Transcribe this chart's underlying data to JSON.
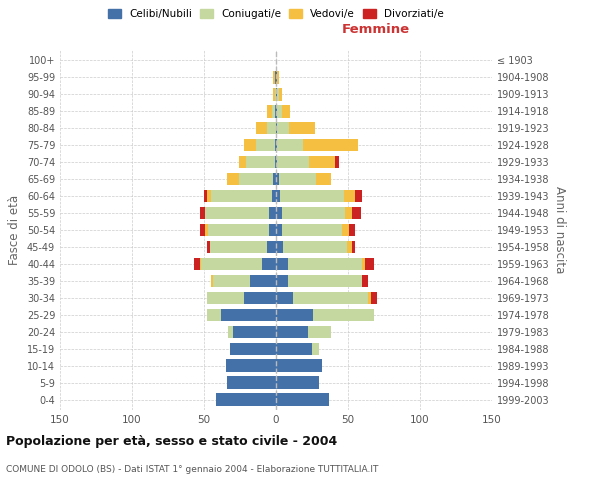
{
  "age_groups": [
    "0-4",
    "5-9",
    "10-14",
    "15-19",
    "20-24",
    "25-29",
    "30-34",
    "35-39",
    "40-44",
    "45-49",
    "50-54",
    "55-59",
    "60-64",
    "65-69",
    "70-74",
    "75-79",
    "80-84",
    "85-89",
    "90-94",
    "95-99",
    "100+"
  ],
  "birth_years": [
    "1999-2003",
    "1994-1998",
    "1989-1993",
    "1984-1988",
    "1979-1983",
    "1974-1978",
    "1969-1973",
    "1964-1968",
    "1959-1963",
    "1954-1958",
    "1949-1953",
    "1944-1948",
    "1939-1943",
    "1934-1938",
    "1929-1933",
    "1924-1928",
    "1919-1923",
    "1914-1918",
    "1909-1913",
    "1904-1908",
    "≤ 1903"
  ],
  "male_celibe": [
    42,
    34,
    35,
    32,
    30,
    38,
    22,
    18,
    10,
    6,
    5,
    5,
    3,
    2,
    1,
    1,
    0,
    1,
    0,
    1,
    0
  ],
  "male_coniugato": [
    0,
    0,
    0,
    0,
    3,
    10,
    26,
    26,
    42,
    40,
    42,
    44,
    42,
    24,
    20,
    13,
    6,
    2,
    1,
    0,
    0
  ],
  "male_vedovo": [
    0,
    0,
    0,
    0,
    0,
    0,
    0,
    1,
    1,
    0,
    2,
    0,
    3,
    8,
    5,
    8,
    8,
    3,
    1,
    1,
    0
  ],
  "male_divorziato": [
    0,
    0,
    0,
    0,
    0,
    0,
    0,
    0,
    4,
    2,
    4,
    4,
    2,
    0,
    0,
    0,
    0,
    0,
    0,
    0,
    0
  ],
  "female_nubile": [
    37,
    30,
    32,
    25,
    22,
    26,
    12,
    8,
    8,
    5,
    4,
    4,
    3,
    2,
    1,
    1,
    1,
    1,
    1,
    1,
    0
  ],
  "female_coniugata": [
    0,
    0,
    0,
    5,
    16,
    42,
    52,
    52,
    52,
    44,
    42,
    44,
    44,
    26,
    22,
    18,
    8,
    3,
    1,
    0,
    0
  ],
  "female_vedova": [
    0,
    0,
    0,
    0,
    0,
    0,
    2,
    0,
    2,
    4,
    5,
    5,
    8,
    10,
    18,
    38,
    18,
    6,
    2,
    1,
    0
  ],
  "female_divorziata": [
    0,
    0,
    0,
    0,
    0,
    0,
    4,
    4,
    6,
    2,
    4,
    6,
    5,
    0,
    3,
    0,
    0,
    0,
    0,
    0,
    0
  ],
  "color_celibe": "#4472a8",
  "color_coniugato": "#c5d8a0",
  "color_vedovo": "#f5c042",
  "color_divorziato": "#cc2222",
  "xlim": 150,
  "title": "Popolazione per età, sesso e stato civile - 2004",
  "subtitle": "COMUNE DI ODOLO (BS) - Dati ISTAT 1° gennaio 2004 - Elaborazione TUTTITALIA.IT",
  "ylabel_left": "Fasce di età",
  "ylabel_right": "Anni di nascita",
  "xlabel_right": "Femmine"
}
